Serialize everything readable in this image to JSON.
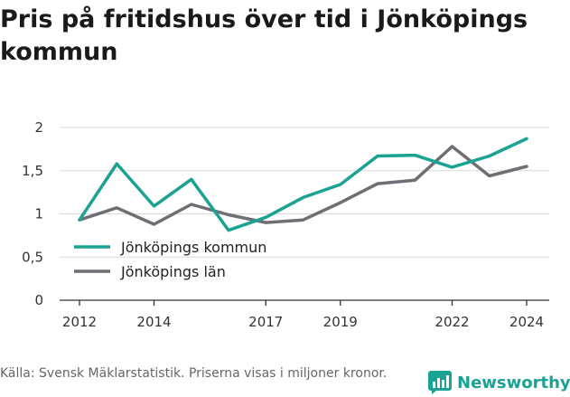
{
  "title": "Pris på fritidshus över tid i Jönköpings kommun",
  "source": "Källa: Svensk Mäklarstatistik. Priserna visas i miljoner kronor.",
  "brand": {
    "name": "Newsworthy",
    "icon": "newsworthy-logo-icon",
    "color": "#1aa393"
  },
  "chart_data": {
    "type": "line",
    "x": [
      2012,
      2013,
      2014,
      2015,
      2016,
      2017,
      2018,
      2019,
      2020,
      2021,
      2022,
      2023,
      2024
    ],
    "x_tick_labels": [
      "2012",
      "2014",
      "2017",
      "2019",
      "2022",
      "2024"
    ],
    "y_tick_labels": [
      "0",
      "0,5",
      "1",
      "1,5",
      "2"
    ],
    "ylim": [
      0,
      2
    ],
    "grid": true,
    "legend_position": "lower-left",
    "series": [
      {
        "name": "Jönköpings kommun",
        "color": "#1aa393",
        "values": [
          0.93,
          1.58,
          1.09,
          1.4,
          0.81,
          0.96,
          1.19,
          1.34,
          1.67,
          1.68,
          1.54,
          1.67,
          1.87
        ]
      },
      {
        "name": "Jönköpings län",
        "color": "#6e6e74",
        "values": [
          0.93,
          1.07,
          0.88,
          1.11,
          0.99,
          0.9,
          0.93,
          1.13,
          1.35,
          1.39,
          1.78,
          1.44,
          1.55
        ]
      }
    ]
  }
}
